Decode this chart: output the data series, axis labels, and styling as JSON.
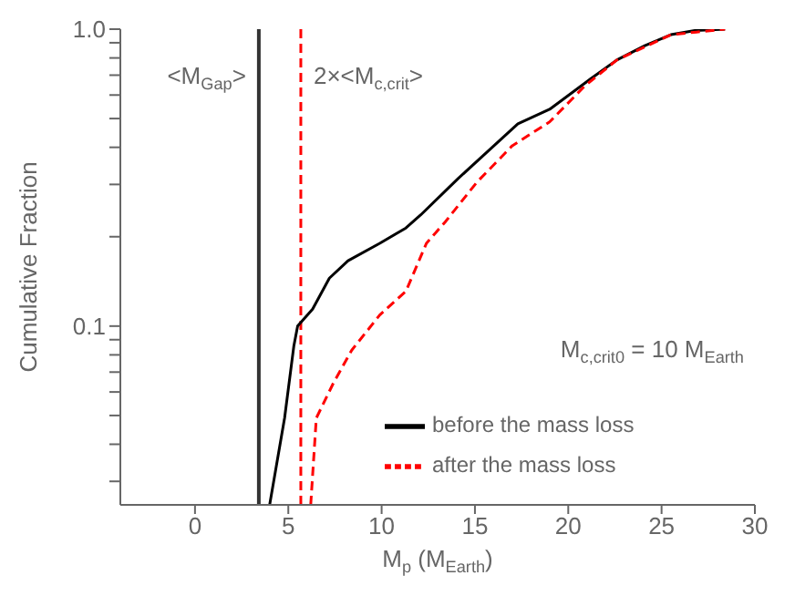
{
  "chart_data": {
    "type": "line",
    "xlabel": "M$_{p}$ (M$_{Earth}$)",
    "ylabel": "Cumulative Fraction",
    "log": "y",
    "xlim": [
      -4,
      30
    ],
    "xticks": [
      0,
      5,
      10,
      15,
      20,
      25,
      30
    ],
    "ylim": [
      0.025,
      1
    ],
    "yticks": [
      {
        "value": 0.03,
        "label": null
      },
      {
        "value": 0.04,
        "label": null
      },
      {
        "value": 0.05,
        "label": null
      },
      {
        "value": 0.06,
        "label": null
      },
      {
        "value": 0.07,
        "label": null
      },
      {
        "value": 0.08,
        "label": null
      },
      {
        "value": 0.09,
        "label": null
      },
      {
        "value": 0.1,
        "label": "0.1"
      },
      {
        "value": 0.2,
        "label": null
      },
      {
        "value": 0.3,
        "label": null
      },
      {
        "value": 0.4,
        "label": null
      },
      {
        "value": 0.5,
        "label": null
      },
      {
        "value": 0.6,
        "label": null
      },
      {
        "value": 0.7,
        "label": null
      },
      {
        "value": 0.8,
        "label": null
      },
      {
        "value": 0.9,
        "label": null
      },
      {
        "value": 1,
        "label": "1.0"
      }
    ],
    "grid": false,
    "legend": "bottom right",
    "series": [
      {
        "name": "before the mass loss",
        "color": "#000000",
        "line_style": "solid",
        "x": [
          4.0,
          4.8,
          5.3,
          5.5,
          6.3,
          7.2,
          8.2,
          9.9,
          11.3,
          12.1,
          14.1,
          15.7,
          17.3,
          19.0,
          21.2,
          22.6,
          24.1,
          25.5,
          26.8,
          28.4
        ],
        "values": [
          0.025,
          0.049,
          0.086,
          0.1,
          0.114,
          0.145,
          0.166,
          0.19,
          0.214,
          0.237,
          0.314,
          0.388,
          0.48,
          0.537,
          0.68,
          0.787,
          0.88,
          0.958,
          0.99,
          1.0
        ]
      },
      {
        "name": "after the mass loss",
        "color": "#ff0000",
        "line_style": "dashed",
        "x": [
          6.2,
          6.5,
          7.4,
          8.4,
          9.9,
          11.3,
          12.4,
          13.4,
          15.1,
          17.0,
          19.0,
          20.9,
          22.6,
          25.5,
          28.4
        ],
        "values": [
          0.025,
          0.049,
          0.064,
          0.083,
          0.109,
          0.131,
          0.19,
          0.224,
          0.305,
          0.405,
          0.487,
          0.645,
          0.787,
          0.958,
          1.0
        ]
      }
    ],
    "ref_lines": [
      {
        "axis": "x",
        "value": 3.42,
        "label": "<M$_{Gap}$>",
        "color": "#333333",
        "line_style": "solid"
      },
      {
        "axis": "x",
        "value": 5.67,
        "label": "2×<M$_{c,crit}$>",
        "color": "#ff0000",
        "line_style": "dashed"
      }
    ],
    "annotations": [
      "M$_{c,crit0}$ = 10 M$_{Earth}$"
    ]
  }
}
